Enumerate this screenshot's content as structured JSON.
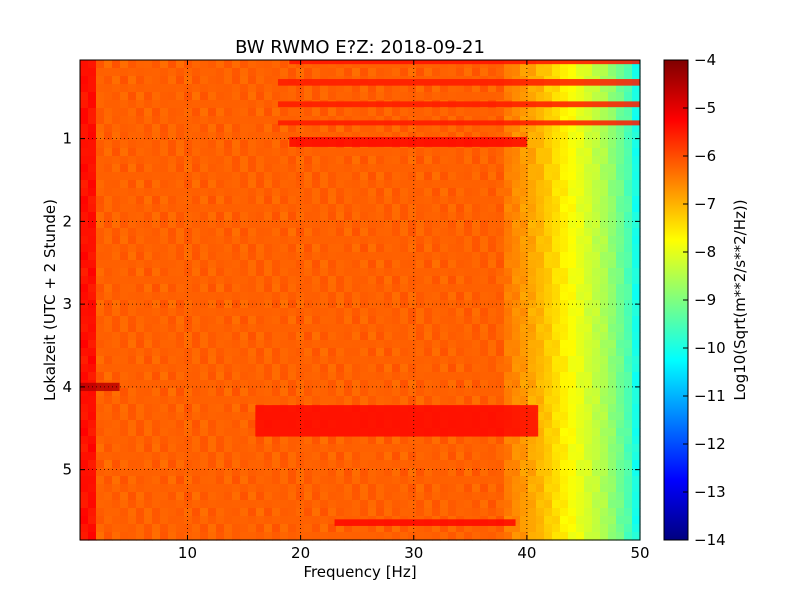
{
  "chart_data": {
    "type": "heatmap",
    "title": "BW RWMO E?Z: 2018-09-21",
    "xlabel": "Frequency [Hz]",
    "ylabel": "Lokalzeit (UTC + 2 Stunde)",
    "xlim": [
      0.5,
      50
    ],
    "ylim": [
      5.85,
      0.05
    ],
    "xticks": [
      10,
      20,
      30,
      40,
      50
    ],
    "yticks": [
      1,
      2,
      3,
      4,
      5
    ],
    "grid": true,
    "colorbar": {
      "label": "Log10(Sqrt(m**2/s**2/Hz))",
      "range": [
        -14,
        -4
      ],
      "ticks": [
        -4,
        -5,
        -6,
        -7,
        -8,
        -9,
        -10,
        -11,
        -12,
        -13,
        -14
      ],
      "colormap": [
        "#00007f",
        "#0000ff",
        "#007fff",
        "#00ffff",
        "#7fff7f",
        "#ffff00",
        "#ff7f00",
        "#ff0000",
        "#7f0000"
      ]
    },
    "background_level": -6.2,
    "rolloff": [
      {
        "freq_hz": 38,
        "value": -6.4
      },
      {
        "freq_hz": 41,
        "value": -7.0
      },
      {
        "freq_hz": 44,
        "value": -7.8
      },
      {
        "freq_hz": 47,
        "value": -8.6
      },
      {
        "freq_hz": 49,
        "value": -9.5
      },
      {
        "freq_hz": 50,
        "value": -10.3
      }
    ],
    "low_freq_band": {
      "freq_hz": [
        0.5,
        2
      ],
      "value": -5.4
    },
    "features": [
      {
        "label": "band",
        "time_h": [
          0.05,
          0.1
        ],
        "freq_hz": [
          19,
          50
        ],
        "value": -5.4
      },
      {
        "label": "band",
        "time_h": [
          0.28,
          0.36
        ],
        "freq_hz": [
          18,
          50
        ],
        "value": -5.5
      },
      {
        "label": "band",
        "time_h": [
          0.55,
          0.62
        ],
        "freq_hz": [
          18,
          50
        ],
        "value": -5.5
      },
      {
        "label": "band",
        "time_h": [
          0.78,
          0.84
        ],
        "freq_hz": [
          18,
          50
        ],
        "value": -5.5
      },
      {
        "label": "band",
        "time_h": [
          0.98,
          1.1
        ],
        "freq_hz": [
          19,
          40
        ],
        "value": -5.3
      },
      {
        "label": "burst",
        "time_h": [
          3.95,
          4.05
        ],
        "freq_hz": [
          0.5,
          4
        ],
        "value": -4.6
      },
      {
        "label": "band",
        "time_h": [
          4.22,
          4.6
        ],
        "freq_hz": [
          16,
          41
        ],
        "value": -5.3
      },
      {
        "label": "band",
        "time_h": [
          5.6,
          5.68
        ],
        "freq_hz": [
          23,
          39
        ],
        "value": -5.3
      }
    ]
  }
}
